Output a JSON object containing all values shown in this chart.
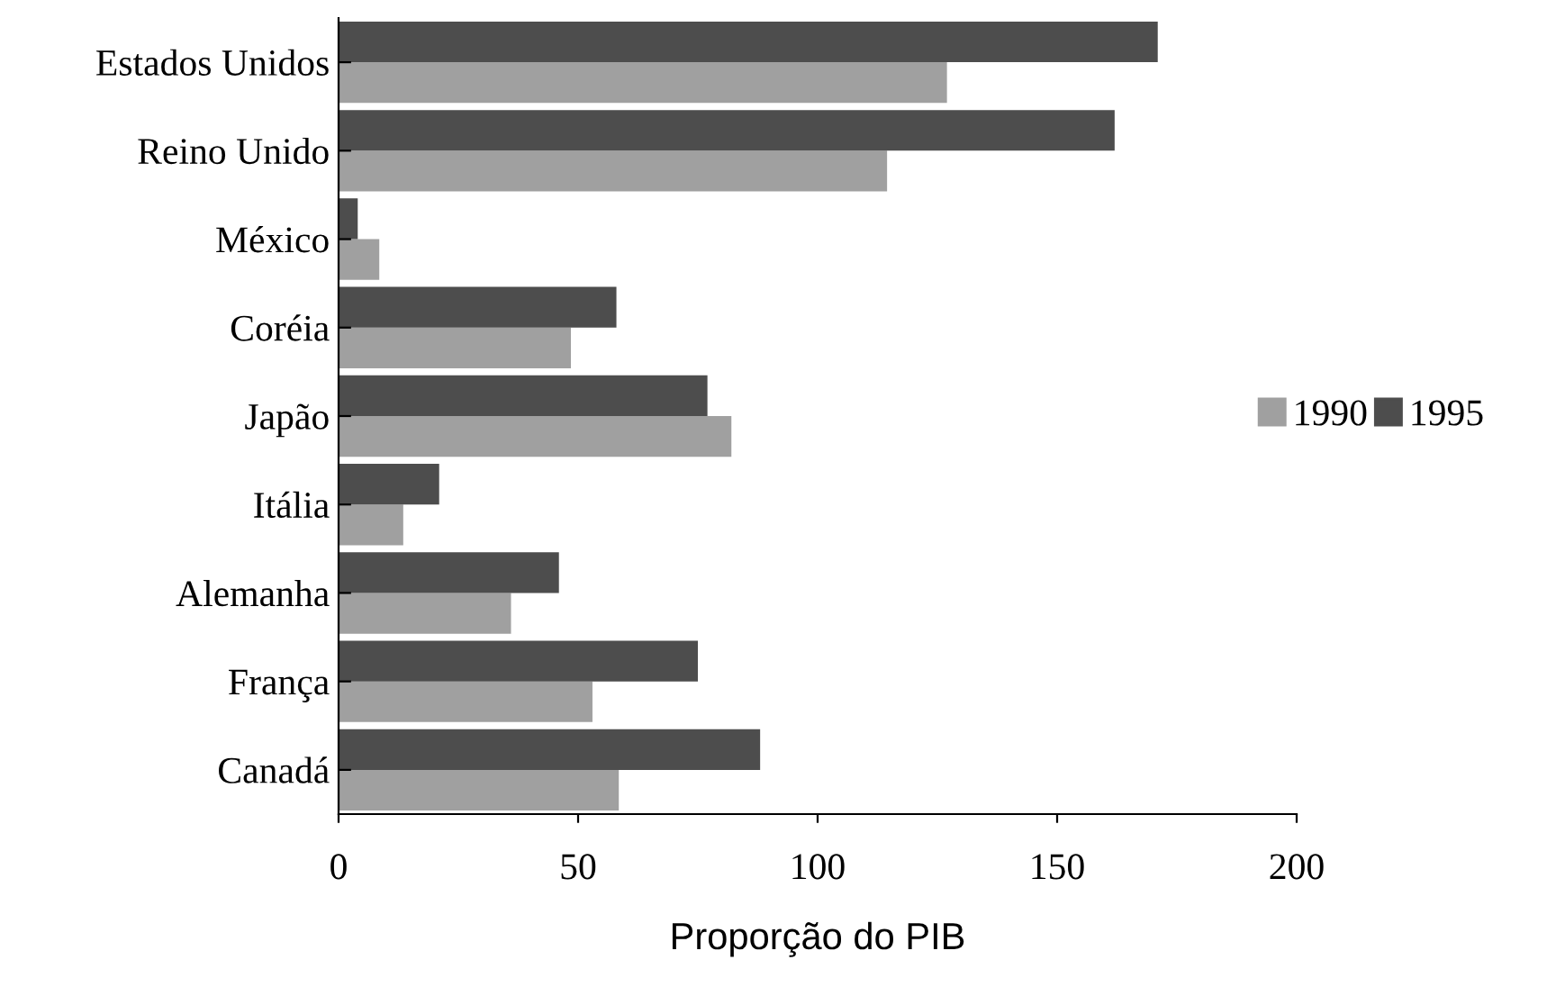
{
  "chart_data": {
    "type": "bar",
    "orientation": "horizontal",
    "xlabel": "Proporção do PIB",
    "categories": [
      "Estados Unidos",
      "Reino Unido",
      "México",
      "Coréia",
      "Japão",
      "Itália",
      "Alemanha",
      "França",
      "Canadá"
    ],
    "series": [
      {
        "name": "1990",
        "color": "#a0a0a0",
        "values": [
          127,
          114.5,
          8.5,
          48.5,
          82,
          13.5,
          36,
          53,
          58.5
        ]
      },
      {
        "name": "1995",
        "color": "#4d4d4d",
        "values": [
          171,
          162,
          4,
          58,
          77,
          21,
          46,
          75,
          88
        ]
      }
    ],
    "xlim": [
      0,
      200
    ],
    "xticks": [
      0,
      50,
      100,
      150,
      200
    ],
    "grid": false,
    "legend": "right"
  }
}
